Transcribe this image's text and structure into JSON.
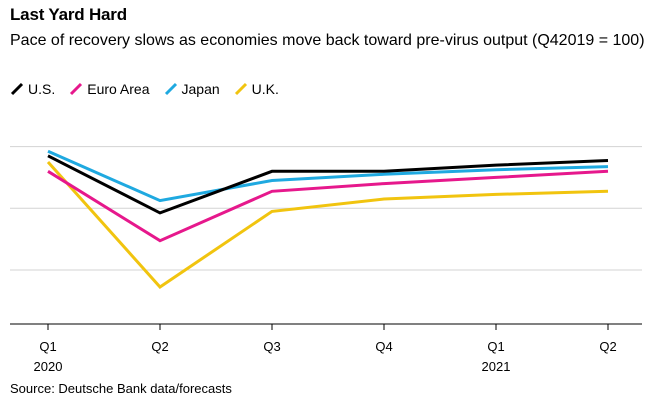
{
  "chart_data": {
    "type": "line",
    "title": "Last Yard Hard",
    "subtitle": "Pace of recovery slows as economies move back toward pre-virus output (Q42019 = 100)",
    "categories": [
      "Q1",
      "Q2",
      "Q3",
      "Q4",
      "Q1",
      "Q2"
    ],
    "year_labels": [
      "2020",
      "",
      "",
      "",
      "2021",
      ""
    ],
    "xlabel": "",
    "ylabel": "",
    "ylim": [
      88,
      102
    ],
    "gridlines": [
      91.5,
      95.5,
      99.5
    ],
    "series": [
      {
        "name": "U.S.",
        "color": "#000000",
        "values": [
          98.9,
          95.2,
          97.9,
          97.9,
          98.3,
          98.6
        ]
      },
      {
        "name": "Euro Area",
        "color": "#e6188c",
        "values": [
          97.9,
          93.4,
          96.6,
          97.1,
          97.5,
          97.9
        ]
      },
      {
        "name": "Japan",
        "color": "#1fa9e0",
        "values": [
          99.2,
          96.0,
          97.3,
          97.7,
          98.0,
          98.2
        ]
      },
      {
        "name": "U.K.",
        "color": "#f1c40f",
        "values": [
          98.5,
          90.4,
          95.3,
          96.1,
          96.4,
          96.6
        ]
      }
    ],
    "legend_position": "top-left",
    "grid": true
  },
  "source": "Source: Deutsche Bank data/forecasts"
}
